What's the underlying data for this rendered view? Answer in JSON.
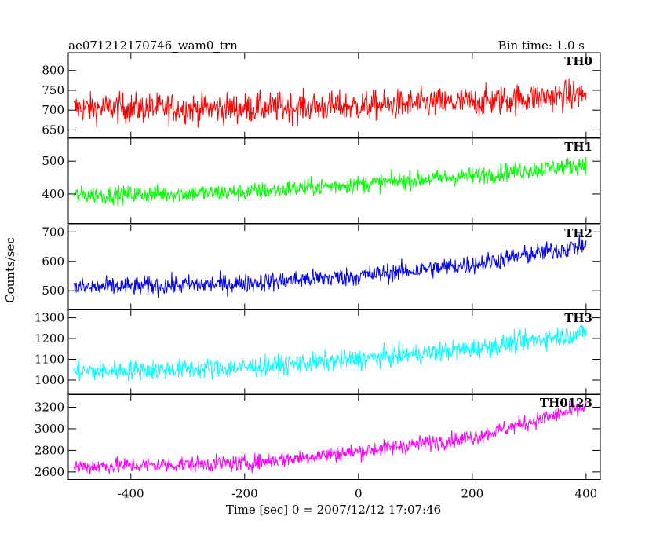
{
  "header": {
    "title": "ae071212170746_wam0_trn",
    "bin_time": "Bin time: 1.0 s"
  },
  "chart_data": {
    "type": "line",
    "title": "ae071212170746_wam0_trn",
    "xlabel": "Time [sec] 0 = 2007/12/12 17:07:46",
    "ylabel": "Counts/sec",
    "xlim": [
      -510,
      425
    ],
    "x_ticks": [
      -400,
      -200,
      0,
      200,
      400
    ],
    "x_range_data": [
      -500,
      400
    ],
    "bin_time_s": 1.0,
    "grid": false,
    "panels": [
      {
        "name": "TH0",
        "color": "#ff0000",
        "ylim": [
          630,
          845
        ],
        "ticks": [
          650,
          700,
          750,
          800
        ],
        "trend": [
          [
            -500,
            705
          ],
          [
            -200,
            705
          ],
          [
            0,
            710
          ],
          [
            200,
            720
          ],
          [
            400,
            740
          ]
        ],
        "noise_amplitude": 35
      },
      {
        "name": "TH1",
        "color": "#00ff00",
        "ylim": [
          310,
          570
        ],
        "ticks": [
          400,
          500
        ],
        "trend": [
          [
            -500,
            395
          ],
          [
            -200,
            405
          ],
          [
            0,
            430
          ],
          [
            200,
            455
          ],
          [
            400,
            490
          ]
        ],
        "noise_amplitude": 25
      },
      {
        "name": "TH2",
        "color": "#0000ff",
        "ylim": [
          435,
          725
        ],
        "ticks": [
          500,
          600,
          700
        ],
        "trend": [
          [
            -500,
            510
          ],
          [
            -200,
            525
          ],
          [
            0,
            550
          ],
          [
            200,
            590
          ],
          [
            400,
            655
          ]
        ],
        "noise_amplitude": 30
      },
      {
        "name": "TH3",
        "color": "#00ffff",
        "ylim": [
          930,
          1340
        ],
        "ticks": [
          1000,
          1100,
          1200,
          1300
        ],
        "trend": [
          [
            -500,
            1040
          ],
          [
            -200,
            1060
          ],
          [
            0,
            1100
          ],
          [
            200,
            1150
          ],
          [
            400,
            1230
          ]
        ],
        "noise_amplitude": 45
      },
      {
        "name": "TH0123",
        "color": "#ff00ff",
        "ylim": [
          2530,
          3320
        ],
        "ticks": [
          2600,
          2800,
          3000,
          3200
        ],
        "trend": [
          [
            -500,
            2650
          ],
          [
            -200,
            2680
          ],
          [
            0,
            2790
          ],
          [
            200,
            2920
          ],
          [
            400,
            3200
          ]
        ],
        "noise_amplitude": 70
      }
    ]
  }
}
